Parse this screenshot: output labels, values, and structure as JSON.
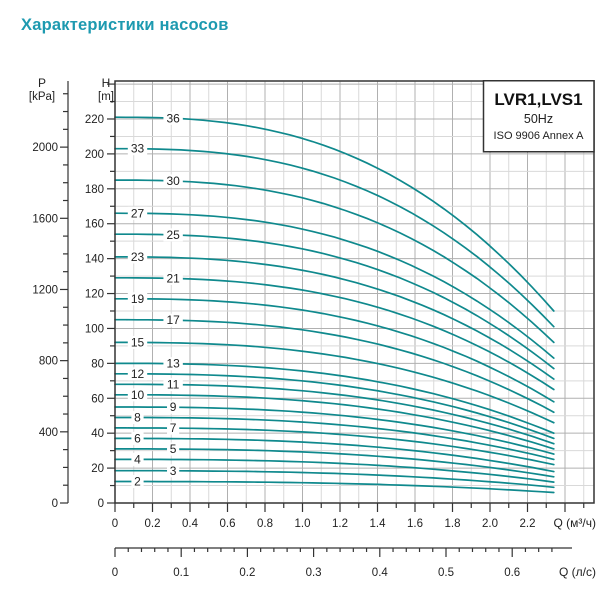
{
  "page": {
    "title": "Характеристики насосов"
  },
  "colors": {
    "page_title": "#1d9ab0",
    "curve": "#0f898d",
    "grid_minor": "#d9d9d9",
    "grid_major": "#b0b0b0",
    "axis": "#333333",
    "tick_text": "#222222"
  },
  "chart_data": {
    "type": "line",
    "title_box": {
      "model": "LVR1,LVS1",
      "frequency": "50Hz",
      "standard": "ISO 9906 Annex A"
    },
    "axes": {
      "pressure": {
        "name": "P",
        "unit": "[kPa]",
        "tick_labels": [
          "0",
          "400",
          "800",
          "1200",
          "1600",
          "2000"
        ],
        "major_step": 400,
        "minor_step": 100,
        "minor_max": 2300,
        "kpa_to_m": 0.10194
      },
      "head": {
        "name": "H",
        "unit": "[m]",
        "tick_labels": [
          "0",
          "20",
          "40",
          "60",
          "80",
          "100",
          "120",
          "140",
          "160",
          "180",
          "200",
          "220"
        ],
        "major_step": 20,
        "minor_step": 10,
        "minor_max": 240,
        "range_m": [
          0,
          241.8
        ]
      },
      "flow_m3h": {
        "axis_label": "Q (м³/ч)",
        "tick_labels": [
          "0",
          "0.2",
          "0.4",
          "0.6",
          "0.8",
          "1.0",
          "1.2",
          "1.4",
          "1.6",
          "1.8",
          "2.0",
          "2.2"
        ],
        "major_step": 0.2,
        "minor_step": 0.1,
        "minor_max": 2.5,
        "major_max": 2.4,
        "range": [
          0,
          2.55
        ]
      },
      "flow_ls": {
        "axis_label": "Q (л/с)",
        "tick_labels": [
          "0",
          "0.1",
          "0.2",
          "0.3",
          "0.4",
          "0.5",
          "0.6"
        ],
        "major_step": 0.1,
        "minor_step": 0.02,
        "minor_max": 0.66,
        "m3h_per_ls": 3.6
      }
    },
    "grid": {
      "vertical_every_m3h": 0.1,
      "horizontal_every_m": 10
    },
    "curve_model": {
      "q_start": 0,
      "q_end": 2.34,
      "droop_exponent": 2.6
    },
    "series": [
      {
        "stages": 36,
        "h0_m": 221,
        "h_end_m": 110,
        "label_q": 0.31
      },
      {
        "stages": 33,
        "h0_m": 203,
        "h_end_m": 101,
        "label_q": 0.12
      },
      {
        "stages": 30,
        "h0_m": 185,
        "h_end_m": 92,
        "label_q": 0.31
      },
      {
        "stages": 27,
        "h0_m": 166,
        "h_end_m": 83,
        "label_q": 0.12
      },
      {
        "stages": 25,
        "h0_m": 154,
        "h_end_m": 77,
        "label_q": 0.31
      },
      {
        "stages": 23,
        "h0_m": 141,
        "h_end_m": 71,
        "label_q": 0.12
      },
      {
        "stages": 21,
        "h0_m": 129,
        "h_end_m": 65,
        "label_q": 0.31
      },
      {
        "stages": 19,
        "h0_m": 117,
        "h_end_m": 58,
        "label_q": 0.12
      },
      {
        "stages": 17,
        "h0_m": 105,
        "h_end_m": 52,
        "label_q": 0.31
      },
      {
        "stages": 15,
        "h0_m": 92,
        "h_end_m": 46,
        "label_q": 0.12
      },
      {
        "stages": 13,
        "h0_m": 80,
        "h_end_m": 40,
        "label_q": 0.31
      },
      {
        "stages": 12,
        "h0_m": 74,
        "h_end_m": 37,
        "label_q": 0.12
      },
      {
        "stages": 11,
        "h0_m": 68,
        "h_end_m": 34,
        "label_q": 0.31
      },
      {
        "stages": 10,
        "h0_m": 62,
        "h_end_m": 31,
        "label_q": 0.12
      },
      {
        "stages": 9,
        "h0_m": 55,
        "h_end_m": 28,
        "label_q": 0.31
      },
      {
        "stages": 8,
        "h0_m": 49,
        "h_end_m": 25,
        "label_q": 0.12
      },
      {
        "stages": 7,
        "h0_m": 43,
        "h_end_m": 22,
        "label_q": 0.31
      },
      {
        "stages": 6,
        "h0_m": 37,
        "h_end_m": 18,
        "label_q": 0.12
      },
      {
        "stages": 5,
        "h0_m": 31,
        "h_end_m": 15,
        "label_q": 0.31
      },
      {
        "stages": 4,
        "h0_m": 25,
        "h_end_m": 12,
        "label_q": 0.12
      },
      {
        "stages": 3,
        "h0_m": 18.5,
        "h_end_m": 9,
        "label_q": 0.31
      },
      {
        "stages": 2,
        "h0_m": 12.3,
        "h_end_m": 6,
        "label_q": 0.12
      }
    ]
  }
}
